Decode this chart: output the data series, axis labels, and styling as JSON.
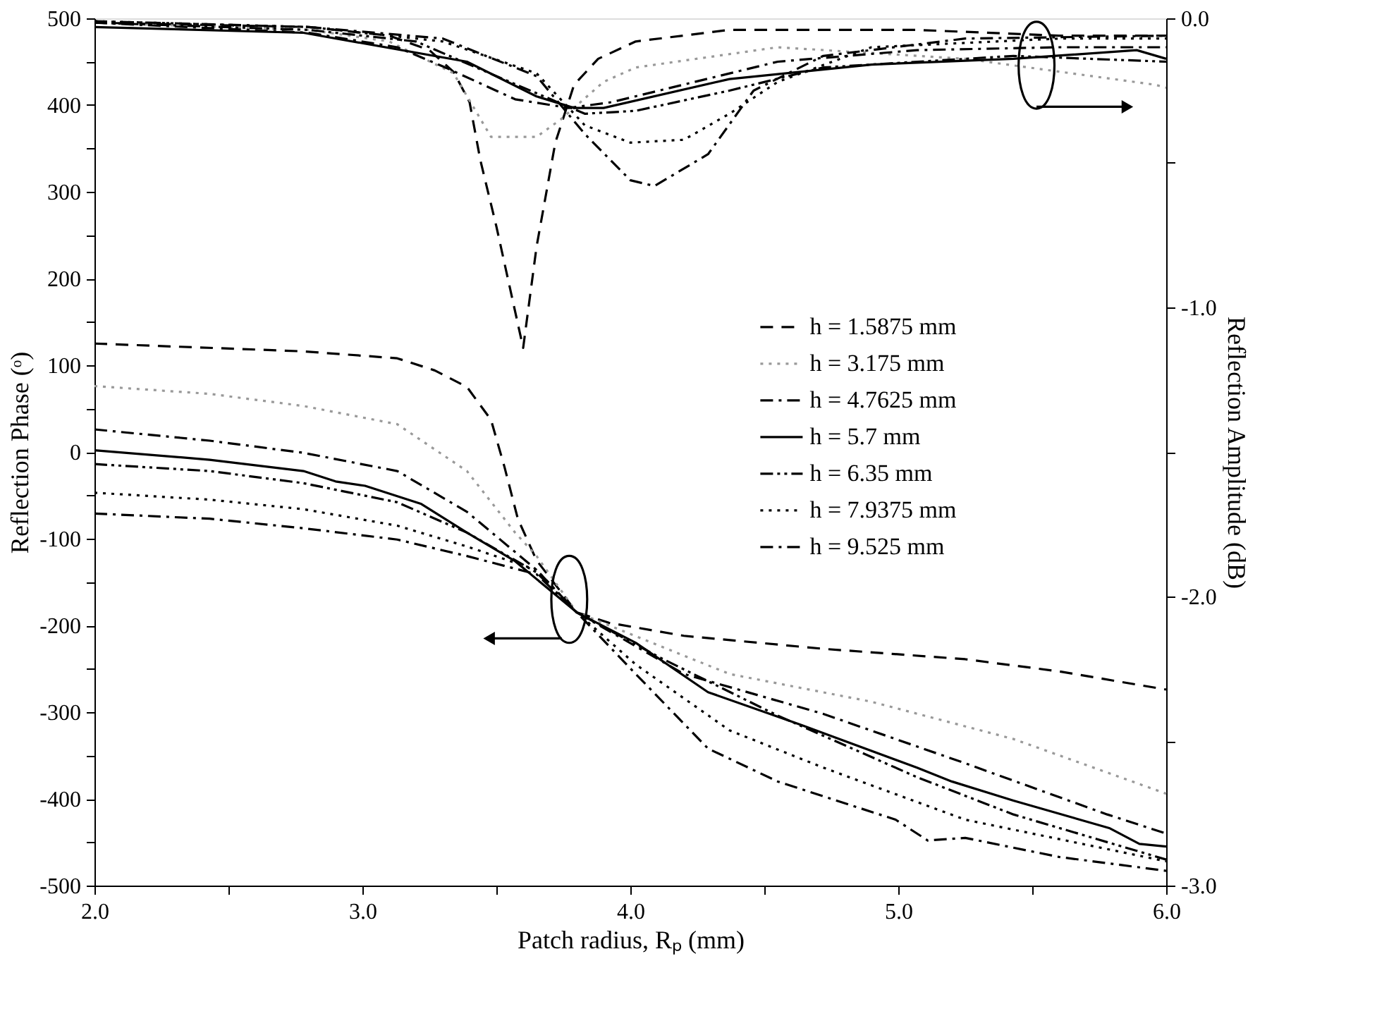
{
  "chart_data": {
    "type": "line",
    "xlabel": "Patch radius, Rₚ (mm)",
    "ylabel": "Reflection Phase (ᵒ)",
    "y2label": "Reflection Amplitude (dB)",
    "xlim": [
      2.0,
      6.0
    ],
    "xticks": [
      {
        "value": 2,
        "label": "2.0"
      },
      {
        "value": 2.5,
        "label": null
      },
      {
        "value": 3,
        "label": "3.0"
      },
      {
        "value": 3.5,
        "label": null
      },
      {
        "value": 4,
        "label": "4.0"
      },
      {
        "value": 4.5,
        "label": null
      },
      {
        "value": 5,
        "label": "5.0"
      },
      {
        "value": 5.5,
        "label": null
      },
      {
        "value": 6,
        "label": "6.0"
      }
    ],
    "ylim": [
      -500,
      500
    ],
    "yticks": [
      500,
      {
        "value": 450,
        "label": null
      },
      400,
      {
        "value": 350,
        "label": null
      },
      300,
      {
        "value": 250,
        "label": null
      },
      200,
      {
        "value": 150,
        "label": null
      },
      100,
      {
        "value": 50,
        "label": null
      },
      0,
      {
        "value": -50,
        "label": null
      },
      -100,
      {
        "value": -150,
        "label": null
      },
      -200,
      {
        "value": -250,
        "label": null
      },
      -300,
      {
        "value": -350,
        "label": null
      },
      -400,
      {
        "value": -450,
        "label": null
      },
      -500
    ],
    "y2lim": [
      -3.0,
      0.0
    ],
    "y2ticks": [
      {
        "value": 0,
        "label": "0.0"
      },
      {
        "value": -0.5,
        "label": null
      },
      {
        "value": -1,
        "label": "-1.0"
      },
      {
        "value": -1.5,
        "label": null
      },
      {
        "value": -2,
        "label": "-2.0"
      },
      {
        "value": -2.5,
        "label": null
      },
      {
        "value": -3,
        "label": "-3.0"
      }
    ],
    "legend": "right",
    "grid": false,
    "series": [
      {
        "name": "h = 1.5875 mm",
        "color": "#000000",
        "line_style": "dashed",
        "x": [
          2.0,
          2.78,
          3.13,
          3.27,
          3.39,
          3.48,
          3.53,
          3.58,
          3.65,
          3.8,
          3.92,
          4.2,
          4.72,
          5.25,
          5.6,
          6.0
        ],
        "values": [
          125,
          116,
          108,
          94,
          75,
          37,
          -17,
          -77,
          -125,
          -185,
          -197,
          -212,
          -227,
          -239,
          -253,
          -274
        ]
      },
      {
        "name": "h = 3.175 mm",
        "color": "#999999",
        "line_style": "dotted",
        "x": [
          2.0,
          2.43,
          2.78,
          3.13,
          3.39,
          3.57,
          3.65,
          3.8,
          4.37,
          4.9,
          5.43,
          6.0
        ],
        "values": [
          76,
          67,
          53,
          32,
          -22,
          -93,
          -120,
          -185,
          -256,
          -288,
          -331,
          -394
        ]
      },
      {
        "name": "h = 4.7625 mm",
        "color": "#000000",
        "line_style": "dashdot",
        "x": [
          2.0,
          2.43,
          2.78,
          3.13,
          3.39,
          3.65,
          3.8,
          4.2,
          4.72,
          5.25,
          5.78,
          6.0
        ],
        "values": [
          26,
          13,
          -1,
          -22,
          -69,
          -136,
          -185,
          -256,
          -302,
          -359,
          -418,
          -440
        ]
      },
      {
        "name": "h = 5.7 mm",
        "color": "#000000",
        "line_style": "solid",
        "x": [
          2.0,
          2.43,
          2.78,
          2.9,
          3.01,
          3.22,
          3.39,
          3.57,
          3.8,
          4.02,
          4.29,
          4.64,
          5.07,
          5.2,
          5.43,
          5.79,
          5.9,
          6.0
        ],
        "values": [
          2,
          -9,
          -22,
          -34,
          -39,
          -60,
          -93,
          -126,
          -185,
          -220,
          -277,
          -315,
          -364,
          -380,
          -402,
          -434,
          -452,
          -455
        ]
      },
      {
        "name": "h = 6.35 mm",
        "color": "#000000",
        "line_style": "dashdotdot",
        "x": [
          2.0,
          2.43,
          2.78,
          3.13,
          3.39,
          3.65,
          3.8,
          4.11,
          4.55,
          5.07,
          5.43,
          6.0
        ],
        "values": [
          -14,
          -22,
          -36,
          -58,
          -93,
          -139,
          -185,
          -237,
          -304,
          -375,
          -418,
          -470
        ]
      },
      {
        "name": "h = 7.9375 mm",
        "color": "#000000",
        "line_style": "dotted",
        "x": [
          2.0,
          2.43,
          2.78,
          3.13,
          3.39,
          3.65,
          3.8,
          4.02,
          4.37,
          4.72,
          5.25,
          6.0
        ],
        "values": [
          -47,
          -55,
          -66,
          -85,
          -109,
          -136,
          -185,
          -245,
          -321,
          -364,
          -424,
          -472
        ]
      },
      {
        "name": "h = 9.525 mm",
        "color": "#000000",
        "line_style": "dashdot",
        "x": [
          2.0,
          2.43,
          2.78,
          3.13,
          3.39,
          3.65,
          3.8,
          4.02,
          4.29,
          4.55,
          4.99,
          5.11,
          5.25,
          5.6,
          6.0
        ],
        "values": [
          -71,
          -77,
          -88,
          -101,
          -120,
          -141,
          -185,
          -256,
          -342,
          -380,
          -424,
          -448,
          -445,
          -467,
          -483
        ]
      },
      {
        "color": "#000000",
        "line_style": "dashed",
        "axis": "y2",
        "x": [
          2.0,
          2.8,
          3.1,
          3.25,
          3.34,
          3.4,
          3.44,
          3.5,
          3.6,
          3.65,
          3.72,
          3.79,
          3.88,
          4.02,
          4.37,
          5.07,
          5.6,
          6.0
        ],
        "values": [
          -0.015,
          -0.03,
          -0.06,
          -0.11,
          -0.185,
          -0.29,
          -0.49,
          -0.72,
          -1.14,
          -0.79,
          -0.43,
          -0.23,
          -0.14,
          -0.08,
          -0.04,
          -0.04,
          -0.06,
          -0.06
        ]
      },
      {
        "color": "#999999",
        "line_style": "dotted",
        "axis": "y2",
        "x": [
          2.0,
          2.8,
          3.1,
          3.34,
          3.48,
          3.65,
          3.74,
          3.9,
          4.02,
          4.55,
          5.25,
          5.96,
          6.0
        ],
        "values": [
          -0.015,
          -0.04,
          -0.08,
          -0.19,
          -0.41,
          -0.41,
          -0.35,
          -0.22,
          -0.17,
          -0.1,
          -0.14,
          -0.23,
          -0.24
        ]
      },
      {
        "color": "#000000",
        "line_style": "dashdot",
        "axis": "y2",
        "x": [
          2.0,
          2.8,
          3.13,
          3.31,
          3.57,
          3.77,
          3.93,
          4.55,
          5.07,
          5.6,
          6.0
        ],
        "values": [
          -0.015,
          -0.05,
          -0.1,
          -0.17,
          -0.28,
          -0.31,
          -0.29,
          -0.15,
          -0.11,
          -0.1,
          -0.1
        ]
      },
      {
        "color": "#000000",
        "line_style": "solid",
        "axis": "y2",
        "x": [
          2.0,
          2.78,
          3.39,
          3.65,
          3.79,
          3.9,
          4.37,
          4.9,
          5.43,
          5.89,
          6.0
        ],
        "values": [
          -0.03,
          -0.05,
          -0.15,
          -0.27,
          -0.31,
          -0.31,
          -0.21,
          -0.16,
          -0.14,
          -0.11,
          -0.14
        ]
      },
      {
        "color": "#000000",
        "line_style": "dashdotdot",
        "axis": "y2",
        "x": [
          2.0,
          2.8,
          3.2,
          3.5,
          3.83,
          4.02,
          4.37,
          4.72,
          5.43,
          6.0
        ],
        "values": [
          -0.015,
          -0.04,
          -0.08,
          -0.2,
          -0.33,
          -0.32,
          -0.25,
          -0.17,
          -0.13,
          -0.15
        ]
      },
      {
        "color": "#000000",
        "line_style": "dotted",
        "axis": "y2",
        "x": [
          2.0,
          2.8,
          3.3,
          3.65,
          3.83,
          4.0,
          4.2,
          4.37,
          4.55,
          4.9,
          5.6,
          6.0
        ],
        "values": [
          -0.01,
          -0.03,
          -0.08,
          -0.19,
          -0.37,
          -0.43,
          -0.42,
          -0.33,
          -0.22,
          -0.1,
          -0.07,
          -0.07
        ]
      },
      {
        "color": "#000000",
        "line_style": "dashdot",
        "axis": "y2",
        "x": [
          2.0,
          2.8,
          3.3,
          3.65,
          3.83,
          4.0,
          4.09,
          4.29,
          4.46,
          4.72,
          5.25,
          6.0
        ],
        "values": [
          -0.01,
          -0.03,
          -0.07,
          -0.2,
          -0.4,
          -0.56,
          -0.58,
          -0.47,
          -0.25,
          -0.13,
          -0.07,
          -0.06
        ]
      }
    ]
  }
}
